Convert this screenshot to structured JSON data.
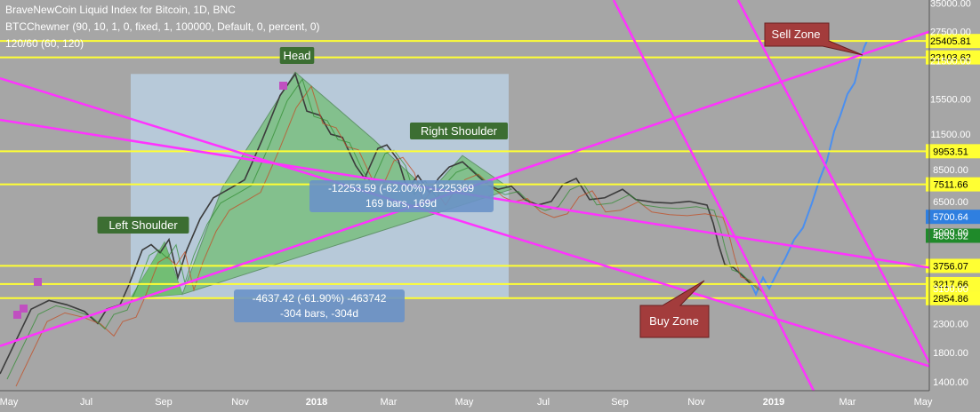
{
  "legend": {
    "title": "BraveNewCoin Liquid Index for Bitcoin, 1D, BNC",
    "indicator1": "BTCChewner (90, 10, 1, 0, fixed, 1, 100000, Default, 0, percent, 0)",
    "indicator2": "120/60 (60, 120)"
  },
  "colors": {
    "background": "#a6a6a6",
    "price": "#3c3c3c",
    "uptrend_price": "#4a8ff0",
    "horizontal_level": "#ffff33",
    "trendline": "#ff33ff",
    "pattern_fill": "#6ebd6e",
    "measure_box": "#bcd4ea",
    "label_green": "#3c6e32",
    "label_blue": "#6a92c8",
    "callout": "#a33c3c"
  },
  "chart_data": {
    "type": "line",
    "title": "BraveNewCoin Liquid Index for Bitcoin, 1D, BNC",
    "yscale": "log",
    "ylim": [
      1300,
      36000
    ],
    "x_ticks": [
      "May",
      "Jul",
      "Sep",
      "Nov",
      "2018",
      "Mar",
      "May",
      "Jul",
      "Sep",
      "Nov",
      "2019",
      "Mar",
      "May"
    ],
    "y_ticks": [
      35000,
      27500,
      21500,
      15500,
      11500,
      8500,
      6500,
      5000,
      3100,
      2300,
      1800,
      1400
    ],
    "level_labels": [
      {
        "value": 25405.81,
        "label": "25405.81",
        "color": "#ffff33"
      },
      {
        "value": 22103.62,
        "label": "22103.62",
        "color": "#ffff33"
      },
      {
        "value": 9953.51,
        "label": "9953.51",
        "color": "#ffff33"
      },
      {
        "value": 7511.66,
        "label": "7511.66",
        "color": "#ffff33"
      },
      {
        "value": 5700.64,
        "label": "5700.64",
        "color": "#2f7fe0"
      },
      {
        "value": 4853.52,
        "label": "4853.52",
        "color": "#1f8a2a"
      },
      {
        "value": 3756.07,
        "label": "3756.07",
        "color": "#ffff33"
      },
      {
        "value": 3217.66,
        "label": "3217.66",
        "color": "#ffff33"
      },
      {
        "value": 2854.86,
        "label": "2854.86",
        "color": "#ffff33"
      }
    ],
    "series": [
      {
        "points": [
          [
            0,
            1500
          ],
          [
            15,
            1900
          ],
          [
            35,
            2600
          ],
          [
            55,
            2800
          ],
          [
            75,
            2700
          ],
          [
            95,
            2550
          ],
          [
            110,
            2300
          ],
          [
            120,
            2600
          ],
          [
            135,
            2700
          ],
          [
            145,
            3200
          ],
          [
            160,
            4300
          ],
          [
            170,
            4500
          ],
          [
            180,
            4200
          ],
          [
            190,
            4700
          ],
          [
            200,
            3400
          ],
          [
            210,
            4300
          ],
          [
            225,
            5600
          ],
          [
            240,
            6700
          ],
          [
            260,
            7300
          ],
          [
            275,
            7800
          ],
          [
            295,
            11000
          ],
          [
            315,
            16000
          ],
          [
            332,
            19200
          ],
          [
            345,
            14000
          ],
          [
            360,
            13500
          ],
          [
            372,
            11500
          ],
          [
            385,
            11200
          ],
          [
            400,
            8800
          ],
          [
            410,
            7900
          ],
          [
            425,
            10200
          ],
          [
            435,
            10500
          ],
          [
            448,
            9200
          ],
          [
            458,
            7200
          ],
          [
            470,
            8100
          ],
          [
            483,
            7000
          ],
          [
            493,
            7900
          ],
          [
            505,
            8700
          ],
          [
            520,
            9100
          ],
          [
            535,
            8200
          ],
          [
            548,
            7500
          ],
          [
            560,
            7200
          ],
          [
            575,
            7400
          ],
          [
            590,
            6600
          ],
          [
            605,
            6300
          ],
          [
            620,
            6500
          ],
          [
            633,
            7500
          ],
          [
            648,
            7900
          ],
          [
            663,
            6600
          ],
          [
            680,
            6700
          ],
          [
            700,
            7200
          ],
          [
            715,
            6600
          ],
          [
            735,
            6450
          ],
          [
            755,
            6400
          ],
          [
            775,
            6500
          ],
          [
            795,
            6300
          ],
          [
            802,
            5400
          ],
          [
            808,
            4500
          ],
          [
            815,
            3800
          ],
          [
            825,
            3700
          ],
          [
            835,
            3450
          ],
          [
            845,
            3200
          ]
        ]
      },
      {
        "points": [
          [
            845,
            3200
          ],
          [
            850,
            2950
          ],
          [
            858,
            3400
          ],
          [
            865,
            3100
          ],
          [
            875,
            3600
          ],
          [
            883,
            4000
          ],
          [
            893,
            4700
          ],
          [
            903,
            5200
          ],
          [
            913,
            6400
          ],
          [
            922,
            7900
          ],
          [
            930,
            9200
          ],
          [
            938,
            11800
          ],
          [
            945,
            13500
          ],
          [
            953,
            16200
          ],
          [
            961,
            17800
          ],
          [
            968,
            22000
          ],
          [
            972,
            24200
          ],
          [
            975,
            25400
          ]
        ]
      }
    ],
    "annotations": {
      "head": "Head",
      "left_shoulder": "Left Shoulder",
      "right_shoulder": "Right Shoulder",
      "sell_zone": "Sell Zone",
      "buy_zone": "Buy Zone",
      "measure1_line1": "-12253.59 (-62.00%) -1225369",
      "measure1_line2": "169 bars, 169d",
      "measure2_line1": "-4637.42 (-61.90%) -463742",
      "measure2_line2": "-304 bars, -304d"
    }
  }
}
